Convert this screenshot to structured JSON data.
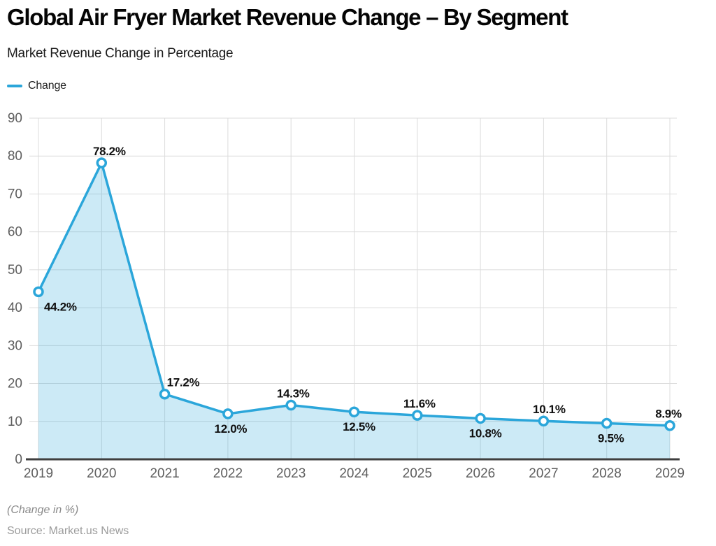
{
  "header": {
    "title": "Global Air Fryer Market Revenue Change – By Segment",
    "subtitle": "Market Revenue Change in Percentage"
  },
  "legend": {
    "label": "Change",
    "color": "#2BA6DA"
  },
  "chart_data": {
    "type": "area",
    "title": "Global Air Fryer Market Revenue Change – By Segment",
    "subtitle": "Market Revenue Change in Percentage",
    "categories": [
      "2019",
      "2020",
      "2021",
      "2022",
      "2023",
      "2024",
      "2025",
      "2026",
      "2027",
      "2028",
      "2029"
    ],
    "series": [
      {
        "name": "Change",
        "values": [
          44.2,
          78.2,
          17.2,
          12.0,
          14.3,
          12.5,
          11.6,
          10.8,
          10.1,
          9.5,
          8.9
        ],
        "labels": [
          "44.2%",
          "78.2%",
          "17.2%",
          "12.0%",
          "14.3%",
          "12.5%",
          "11.6%",
          "10.8%",
          "10.1%",
          "9.5%",
          "8.9%"
        ],
        "label_placement": [
          "below-right",
          "above",
          "above-right",
          "below",
          "above",
          "below",
          "above",
          "below",
          "above",
          "below",
          "above"
        ],
        "label_dx": [
          0,
          11,
          0,
          4,
          3,
          7,
          3,
          7,
          8,
          6,
          -2
        ]
      }
    ],
    "xlabel": "",
    "ylabel": "",
    "ylim": [
      0,
      90
    ],
    "ytick_step": 10,
    "yticks": [
      0,
      10,
      20,
      30,
      40,
      50,
      60,
      70,
      80,
      90
    ],
    "grid": true,
    "legend_position": "top-left",
    "colors": {
      "line": "#2BA6DA",
      "area_fill": "rgba(43, 166, 218, 0.24)",
      "marker_fill": "#FFFFFF",
      "grid": "#DCDCDC",
      "axis_line": "#3F3F3F",
      "tick_label": "#5E5E5E",
      "data_label": "#111111"
    }
  },
  "footer": {
    "note": "(Change in %)",
    "source": "Source: Market.us News"
  }
}
